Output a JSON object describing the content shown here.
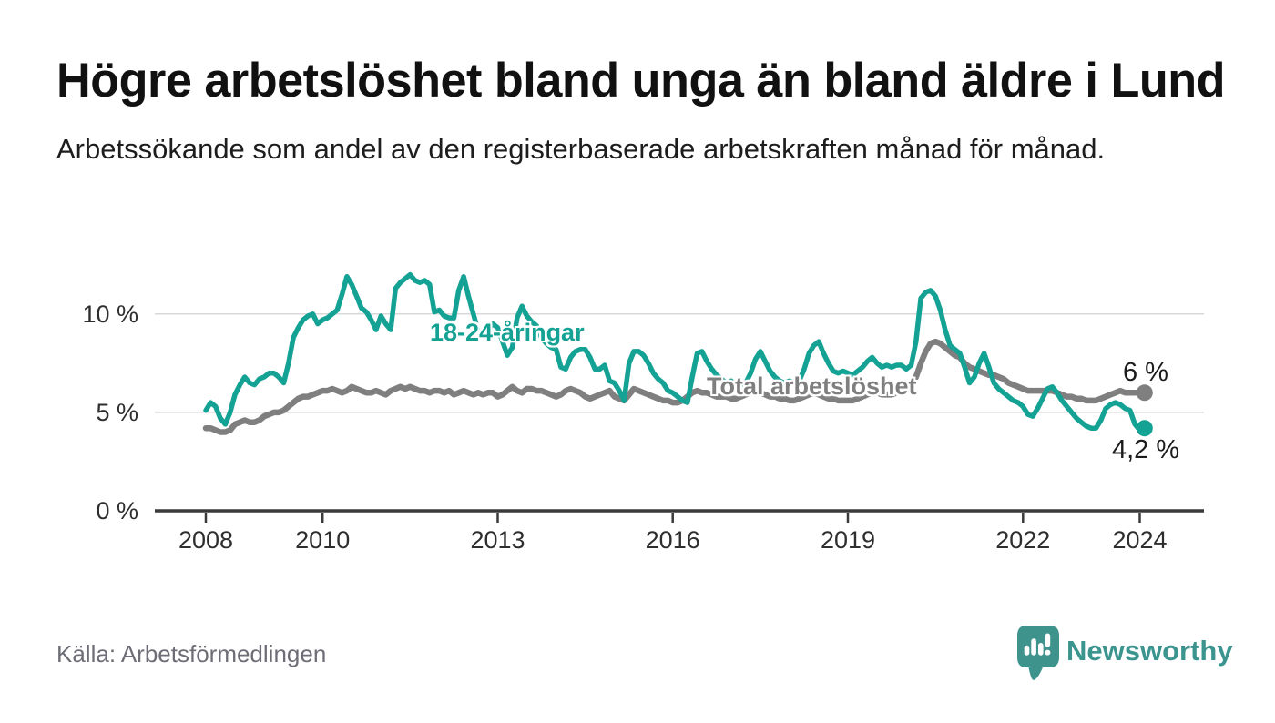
{
  "header": {
    "title": "Högre arbetslöshet bland unga än bland äldre i Lund",
    "subtitle": "Arbetssökande som andel av den registerbaserade arbetskraften månad för månad."
  },
  "source": {
    "label": "Källa: Arbetsförmedlingen"
  },
  "branding": {
    "name": "Newsworthy",
    "logo_icon": "speech-bubble-bar-chart-icon",
    "color": "#3b948e"
  },
  "chart_data": {
    "type": "line",
    "title": "Högre arbetslöshet bland unga än bland äldre i Lund",
    "xlabel": "",
    "ylabel": "",
    "x_unit": "month",
    "x_start": "2008-01",
    "x_end": "2024-02",
    "ylim": [
      0,
      12.5
    ],
    "grid": "horizontal",
    "legend_position": "inline-labels",
    "y_ticks": [
      {
        "value": 0,
        "label": "0 %"
      },
      {
        "value": 5,
        "label": "5 %"
      },
      {
        "value": 10,
        "label": "10 %"
      }
    ],
    "x_ticks": [
      {
        "year": 2008,
        "label": "2008"
      },
      {
        "year": 2010,
        "label": "2010"
      },
      {
        "year": 2013,
        "label": "2013"
      },
      {
        "year": 2016,
        "label": "2016"
      },
      {
        "year": 2019,
        "label": "2019"
      },
      {
        "year": 2022,
        "label": "2022"
      },
      {
        "year": 2024,
        "label": "2024"
      }
    ],
    "series": [
      {
        "name": "18-24-åringar",
        "color": "#14a295",
        "end_label": "4,2 %",
        "end_value": 4.2,
        "values": [
          5.1,
          5.5,
          5.3,
          4.7,
          4.4,
          5.0,
          5.9,
          6.4,
          6.8,
          6.5,
          6.4,
          6.7,
          6.8,
          7.0,
          7.0,
          6.8,
          6.5,
          7.5,
          8.8,
          9.3,
          9.7,
          9.9,
          10.0,
          9.5,
          9.7,
          9.8,
          10.0,
          10.2,
          11.0,
          11.9,
          11.5,
          10.9,
          10.3,
          10.1,
          9.7,
          9.2,
          9.9,
          9.5,
          9.2,
          11.3,
          11.6,
          11.8,
          12.0,
          11.7,
          11.6,
          11.7,
          11.5,
          10.1,
          10.2,
          9.9,
          9.8,
          9.8,
          11.2,
          11.9,
          10.9,
          10.0,
          9.1,
          8.9,
          9.2,
          9.5,
          9.3,
          8.6,
          7.9,
          8.3,
          9.8,
          10.4,
          9.9,
          9.6,
          9.4,
          8.8,
          8.5,
          8.3,
          8.2,
          7.3,
          7.2,
          7.8,
          8.1,
          8.2,
          8.2,
          7.8,
          7.2,
          7.2,
          7.4,
          6.6,
          6.5,
          6.1,
          5.6,
          7.5,
          8.1,
          8.1,
          7.9,
          7.5,
          7.0,
          6.7,
          6.5,
          6.1,
          6.0,
          5.8,
          5.6,
          5.5,
          6.8,
          8.0,
          8.1,
          7.6,
          7.2,
          6.9,
          6.7,
          6.5,
          6.6,
          6.4,
          6.3,
          6.5,
          7.0,
          7.7,
          8.1,
          7.6,
          7.1,
          6.8,
          6.6,
          6.5,
          6.6,
          6.5,
          6.6,
          7.2,
          8.0,
          8.4,
          8.6,
          8.0,
          7.5,
          7.1,
          7.0,
          7.1,
          7.0,
          6.9,
          7.1,
          7.3,
          7.6,
          7.8,
          7.5,
          7.3,
          7.4,
          7.3,
          7.4,
          7.4,
          7.2,
          7.4,
          8.6,
          10.8,
          11.1,
          11.2,
          10.9,
          10.2,
          9.2,
          8.4,
          8.2,
          8.0,
          7.3,
          6.5,
          6.8,
          7.5,
          8.0,
          7.3,
          6.5,
          6.2,
          6.0,
          5.8,
          5.6,
          5.5,
          5.3,
          4.9,
          4.8,
          5.2,
          5.7,
          6.2,
          6.3,
          6.0,
          5.6,
          5.3,
          5.0,
          4.7,
          4.5,
          4.3,
          4.2,
          4.2,
          4.6,
          5.2,
          5.4,
          5.5,
          5.4,
          5.2,
          5.1,
          4.4,
          4.1,
          4.2
        ]
      },
      {
        "name": "Total arbetslöshet",
        "color": "#7f7f7f",
        "end_label": "6 %",
        "end_value": 6.0,
        "values": [
          4.2,
          4.2,
          4.1,
          4.0,
          4.0,
          4.1,
          4.4,
          4.5,
          4.6,
          4.5,
          4.5,
          4.6,
          4.8,
          4.9,
          5.0,
          5.0,
          5.1,
          5.3,
          5.5,
          5.7,
          5.8,
          5.8,
          5.9,
          6.0,
          6.1,
          6.1,
          6.2,
          6.1,
          6.0,
          6.1,
          6.3,
          6.2,
          6.1,
          6.0,
          6.0,
          6.1,
          6.0,
          5.9,
          6.1,
          6.2,
          6.3,
          6.2,
          6.3,
          6.2,
          6.1,
          6.1,
          6.0,
          6.1,
          6.1,
          6.0,
          6.1,
          5.9,
          6.0,
          6.1,
          6.0,
          5.9,
          6.0,
          5.9,
          6.0,
          6.0,
          5.8,
          5.9,
          6.1,
          6.3,
          6.1,
          6.0,
          6.2,
          6.2,
          6.1,
          6.1,
          6.0,
          5.9,
          5.8,
          5.9,
          6.1,
          6.2,
          6.1,
          6.0,
          5.8,
          5.7,
          5.8,
          5.9,
          6.0,
          6.1,
          5.8,
          5.7,
          5.6,
          5.9,
          6.2,
          6.1,
          6.0,
          5.9,
          5.8,
          5.7,
          5.6,
          5.6,
          5.5,
          5.5,
          5.6,
          5.8,
          6.0,
          6.1,
          6.0,
          6.0,
          5.9,
          5.8,
          5.8,
          5.8,
          5.7,
          5.7,
          5.8,
          5.9,
          6.0,
          6.1,
          6.0,
          5.9,
          5.8,
          5.8,
          5.7,
          5.7,
          5.6,
          5.6,
          5.7,
          5.8,
          5.9,
          6.0,
          5.9,
          5.8,
          5.7,
          5.7,
          5.6,
          5.6,
          5.6,
          5.6,
          5.7,
          5.8,
          5.9,
          6.0,
          6.0,
          5.9,
          5.9,
          5.9,
          6.0,
          6.1,
          6.2,
          6.3,
          6.8,
          7.5,
          8.1,
          8.5,
          8.6,
          8.5,
          8.3,
          8.1,
          7.9,
          7.8,
          7.5,
          7.3,
          7.2,
          7.1,
          7.0,
          6.9,
          6.9,
          6.8,
          6.7,
          6.5,
          6.4,
          6.3,
          6.2,
          6.1,
          6.1,
          6.1,
          6.1,
          6.1,
          6.1,
          6.0,
          5.9,
          5.8,
          5.8,
          5.7,
          5.7,
          5.6,
          5.6,
          5.6,
          5.7,
          5.8,
          5.9,
          6.0,
          6.1,
          6.0,
          6.0,
          6.0,
          6.0,
          6.0
        ]
      }
    ]
  }
}
